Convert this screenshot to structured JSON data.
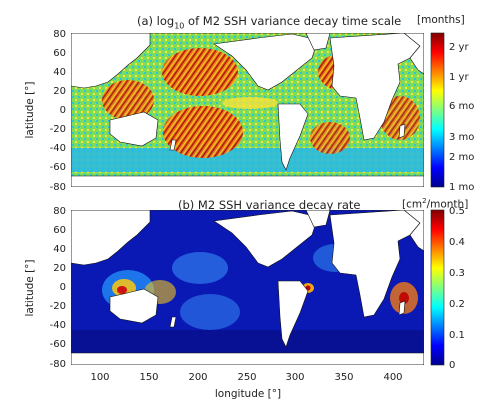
{
  "chart_data": [
    {
      "type": "heatmap",
      "title_main": "(a) log",
      "title_sub": "10",
      "title_rest": " of M2 SSH variance decay time scale",
      "ylabel": "latitude [°]",
      "xlabel": "",
      "xlim": [
        70,
        435
      ],
      "ylim": [
        -80,
        80
      ],
      "xticks": [],
      "yticks": [
        "80",
        "60",
        "40",
        "20",
        "0",
        "-20",
        "-40",
        "-60",
        "-80"
      ],
      "colorbar": {
        "unit": "[months]",
        "colormap": "jet",
        "scale": "log",
        "ticks": [
          "2 yr",
          "1 yr",
          "6 mo",
          "3 mo",
          "2 mo",
          "1 mo"
        ],
        "tick_values_months": [
          24,
          12,
          6,
          3,
          2,
          1
        ]
      },
      "land_color": "#ffffff",
      "dominant_color": "#7fdc5a"
    },
    {
      "type": "heatmap",
      "title_main": "(b) M2 SSH variance decay rate",
      "ylabel": "latitude [°]",
      "xlabel": "longitude [°]",
      "xlim": [
        70,
        435
      ],
      "ylim": [
        -80,
        80
      ],
      "xticks": [
        "100",
        "150",
        "200",
        "250",
        "300",
        "350",
        "400"
      ],
      "yticks": [
        "80",
        "60",
        "40",
        "20",
        "0",
        "-20",
        "-40",
        "-60",
        "-80"
      ],
      "colorbar": {
        "unit_pre": "[cm",
        "unit_sup": "2",
        "unit_post": "/month]",
        "colormap": "jet",
        "scale": "linear",
        "range": [
          0,
          0.5
        ],
        "ticks": [
          "0.5",
          "0.4",
          "0.3",
          "0.2",
          "0.1",
          "0"
        ]
      },
      "land_color": "#ffffff",
      "dominant_color": "#0a18b4"
    }
  ]
}
